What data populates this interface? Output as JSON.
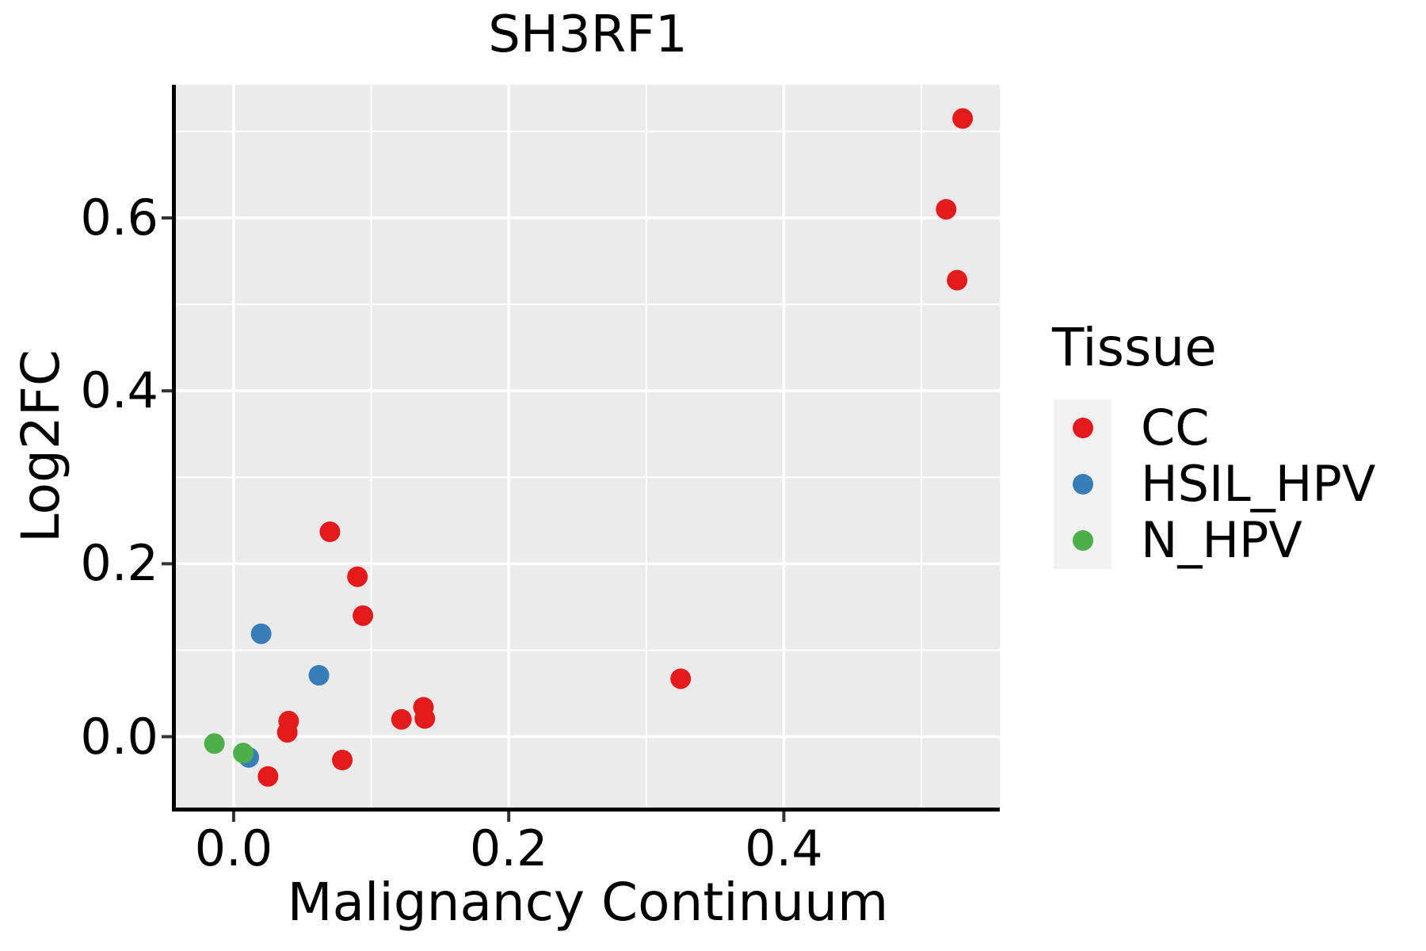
{
  "figure": {
    "title": "SH3RF1"
  },
  "chart_data": {
    "type": "scatter",
    "title": "SH3RF1",
    "xlabel": "Malignancy Continuum",
    "ylabel": "Log2FC",
    "xlim": [
      -0.042,
      0.557
    ],
    "ylim": [
      -0.082,
      0.754
    ],
    "grid": true,
    "panel_background": "#EBEBEB",
    "gridline_color": "#FFFFFF",
    "axis_line_color": "#000000",
    "tick_color": "#333333",
    "x_ticks": {
      "values": [
        0.0,
        0.2,
        0.4
      ],
      "labels": [
        "0.0",
        "0.2",
        "0.4"
      ]
    },
    "y_ticks": {
      "values": [
        0.0,
        0.2,
        0.4,
        0.6
      ],
      "labels": [
        "0.0",
        "0.2",
        "0.4",
        "0.6"
      ]
    },
    "x_minor": [
      0.1,
      0.3,
      0.5
    ],
    "y_minor": [
      0.1,
      0.3,
      0.5,
      0.7
    ],
    "point_radius": 13,
    "legend": {
      "title": "Tissue",
      "position": "right",
      "entries": [
        {
          "label": "CC",
          "color": "#E41A1C"
        },
        {
          "label": "HSIL_HPV",
          "color": "#377EB8"
        },
        {
          "label": "N_HPV",
          "color": "#4DAF4A"
        }
      ]
    },
    "series": [
      {
        "name": "CC",
        "color": "#E41A1C",
        "points": [
          [
            0.53,
            0.715
          ],
          [
            0.518,
            0.61
          ],
          [
            0.526,
            0.528
          ],
          [
            0.07,
            0.237
          ],
          [
            0.09,
            0.185
          ],
          [
            0.094,
            0.14
          ],
          [
            0.325,
            0.067
          ],
          [
            0.039,
            0.005
          ],
          [
            0.04,
            0.018
          ],
          [
            0.025,
            -0.046
          ],
          [
            0.079,
            -0.027
          ],
          [
            0.122,
            0.02
          ],
          [
            0.139,
            0.021
          ],
          [
            0.138,
            0.034
          ]
        ]
      },
      {
        "name": "HSIL_HPV",
        "color": "#377EB8",
        "points": [
          [
            0.011,
            -0.024
          ],
          [
            0.02,
            0.119
          ],
          [
            0.062,
            0.071
          ]
        ]
      },
      {
        "name": "N_HPV",
        "color": "#4DAF4A",
        "points": [
          [
            -0.014,
            -0.008
          ],
          [
            0.007,
            -0.019
          ]
        ]
      }
    ]
  }
}
